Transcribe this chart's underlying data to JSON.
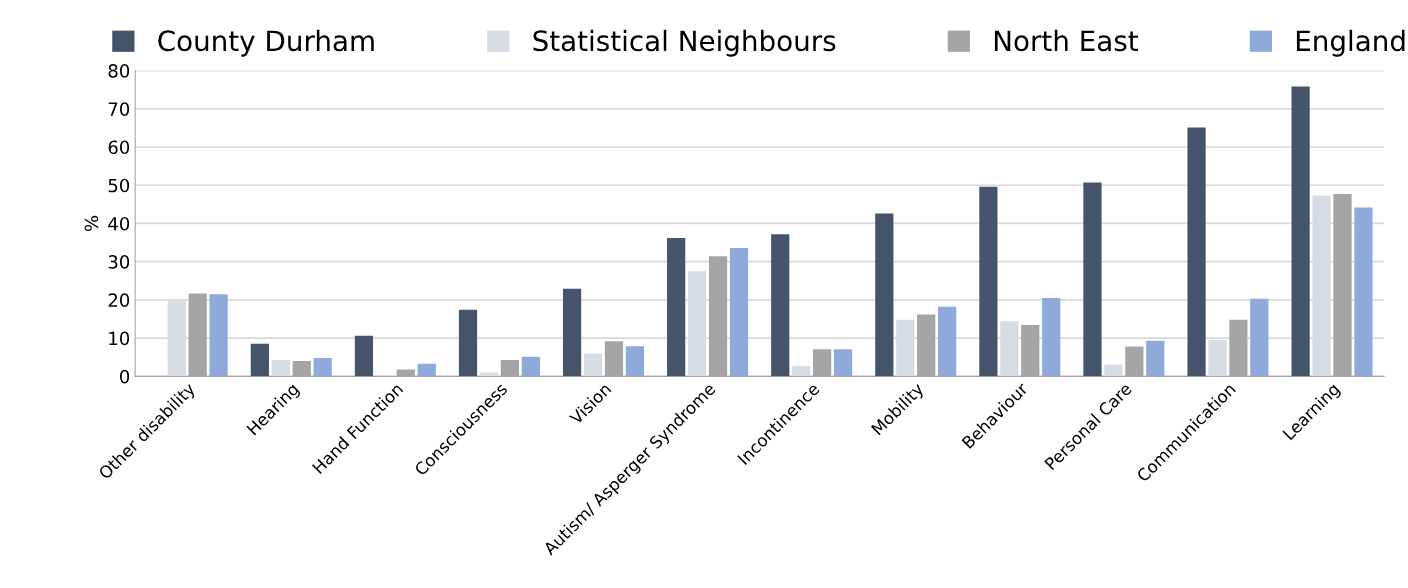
{
  "chart_data": {
    "type": "bar",
    "ylabel": "%",
    "categories": [
      "Other disability",
      "Hearing",
      "Hand Function",
      "Consciousness",
      "Vision",
      "Autism/ Asperger Syndrome",
      "Incontinence",
      "Mobility",
      "Behaviour",
      "Personal Care",
      "Communication",
      "Learning"
    ],
    "series": [
      {
        "name": "County Durham",
        "color": "#44546a",
        "values": [
          null,
          8.5,
          10.6,
          17.4,
          22.9,
          36.2,
          37.2,
          42.6,
          49.6,
          50.7,
          65.1,
          75.8
        ]
      },
      {
        "name": "Statistical Neighbours",
        "color": "#d6dce4",
        "values": [
          19.7,
          4.3,
          null,
          1.0,
          6.0,
          27.5,
          2.7,
          14.8,
          14.4,
          3.1,
          9.5,
          47.3
        ]
      },
      {
        "name": "North East",
        "color": "#a5a5a5",
        "values": [
          21.7,
          4.0,
          1.8,
          4.3,
          9.2,
          31.4,
          7.1,
          16.2,
          13.4,
          7.8,
          14.8,
          47.7
        ]
      },
      {
        "name": "England",
        "color": "#8eaadb",
        "values": [
          21.5,
          4.8,
          3.3,
          5.1,
          7.9,
          33.6,
          7.1,
          18.2,
          20.5,
          9.3,
          20.3,
          44.2
        ]
      }
    ],
    "ylim": [
      0,
      80
    ],
    "yticks": [
      0,
      10,
      20,
      30,
      40,
      50,
      60,
      70,
      80
    ],
    "grid": "y",
    "legend": "top"
  }
}
